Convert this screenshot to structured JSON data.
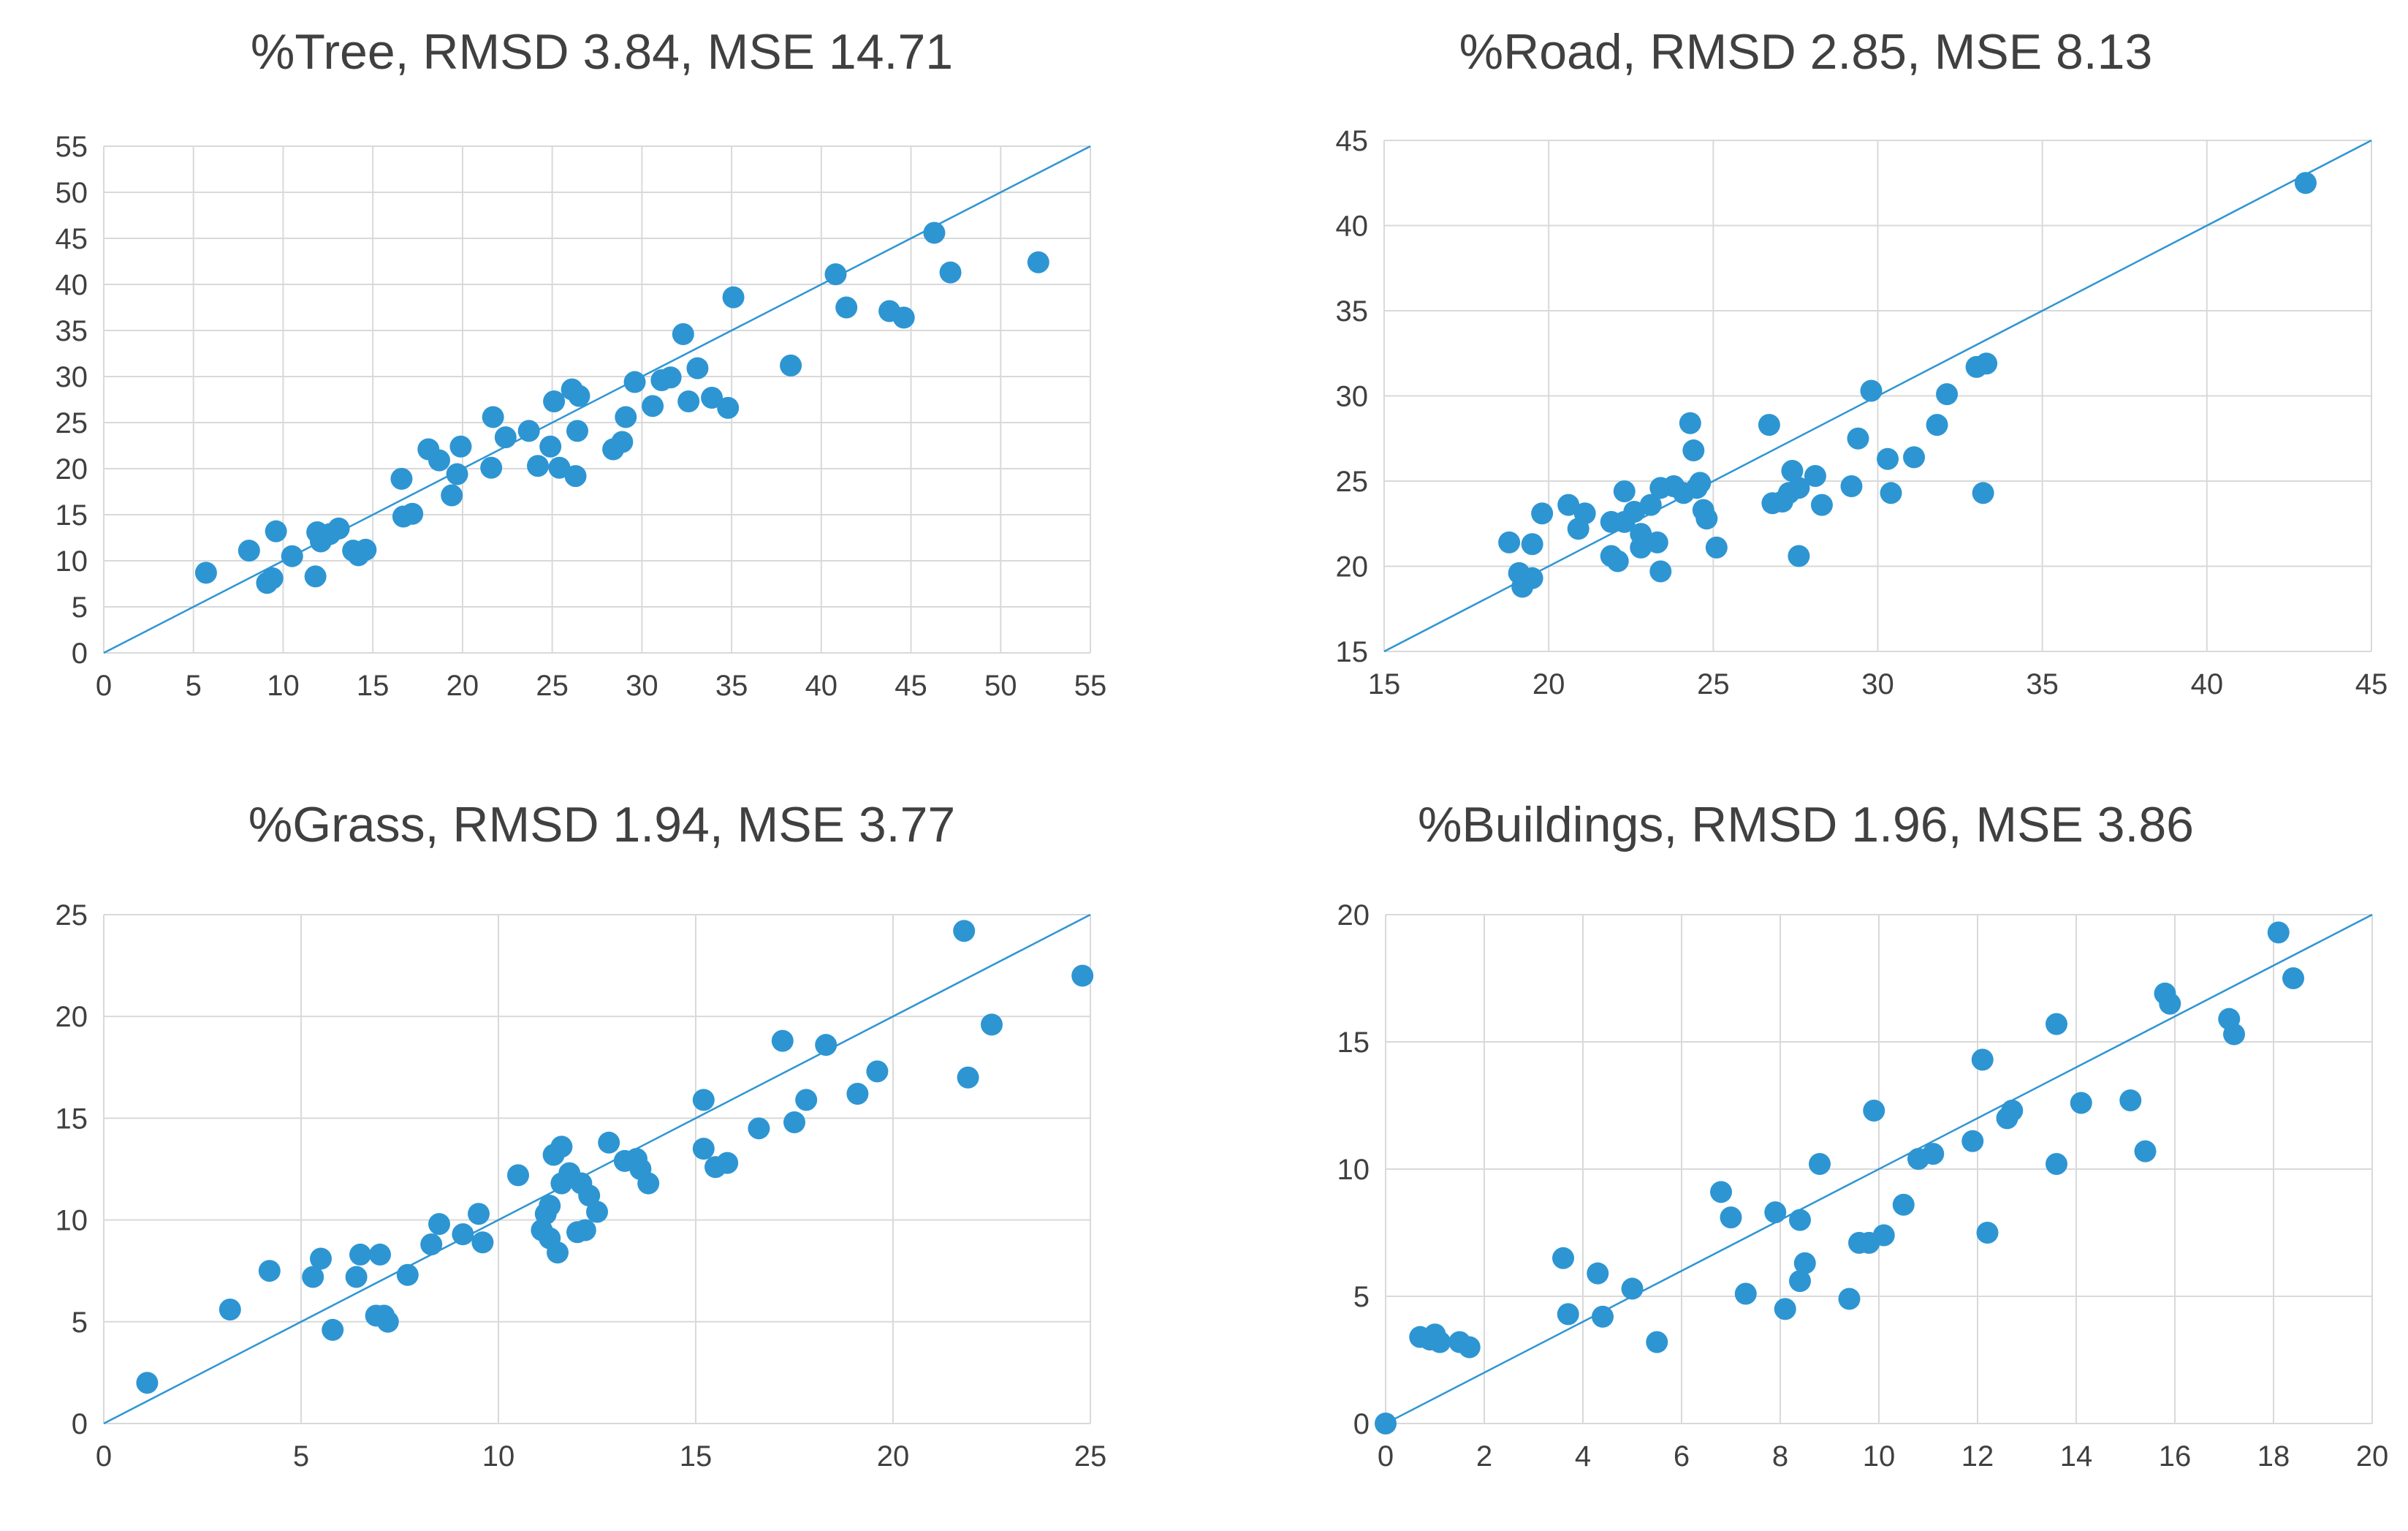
{
  "chart_data": [
    {
      "type": "scatter",
      "title": "%Tree, RMSD 3.84, MSE 14.71",
      "xlabel": "",
      "ylabel": "",
      "xlim": [
        0,
        55
      ],
      "ylim": [
        0,
        55
      ],
      "xticks": [
        0,
        5,
        10,
        15,
        20,
        25,
        30,
        35,
        40,
        45,
        50,
        55
      ],
      "yticks": [
        0,
        5,
        10,
        15,
        20,
        25,
        30,
        35,
        40,
        45,
        50,
        55
      ],
      "grid": true,
      "reference_line": [
        [
          0,
          0
        ],
        [
          55,
          55
        ]
      ],
      "color": "#2e95d3",
      "points": [
        [
          5.7,
          8.7
        ],
        [
          8.1,
          11.1
        ],
        [
          9.1,
          7.6
        ],
        [
          9.4,
          8.1
        ],
        [
          9.6,
          13.2
        ],
        [
          10.5,
          10.5
        ],
        [
          11.8,
          8.3
        ],
        [
          11.9,
          13.1
        ],
        [
          12.1,
          12.1
        ],
        [
          12.6,
          12.9
        ],
        [
          13.1,
          13.5
        ],
        [
          13.9,
          11.1
        ],
        [
          14.2,
          10.6
        ],
        [
          14.6,
          11.2
        ],
        [
          16.6,
          18.9
        ],
        [
          16.7,
          14.8
        ],
        [
          17.2,
          15.1
        ],
        [
          18.1,
          22.1
        ],
        [
          18.7,
          20.9
        ],
        [
          19.4,
          17.1
        ],
        [
          19.7,
          19.4
        ],
        [
          19.9,
          22.4
        ],
        [
          21.6,
          20.1
        ],
        [
          21.7,
          25.6
        ],
        [
          22.4,
          23.4
        ],
        [
          23.7,
          24.1
        ],
        [
          24.2,
          20.3
        ],
        [
          24.9,
          22.4
        ],
        [
          25.1,
          27.3
        ],
        [
          25.4,
          20.1
        ],
        [
          26.1,
          28.6
        ],
        [
          26.3,
          19.2
        ],
        [
          26.4,
          24.1
        ],
        [
          26.5,
          27.9
        ],
        [
          28.4,
          22.1
        ],
        [
          28.9,
          22.9
        ],
        [
          29.1,
          25.6
        ],
        [
          29.6,
          29.4
        ],
        [
          30.6,
          26.8
        ],
        [
          31.1,
          29.6
        ],
        [
          31.6,
          29.9
        ],
        [
          32.3,
          34.6
        ],
        [
          32.6,
          27.3
        ],
        [
          33.1,
          30.9
        ],
        [
          33.9,
          27.7
        ],
        [
          34.8,
          26.6
        ],
        [
          35.1,
          38.6
        ],
        [
          38.3,
          31.2
        ],
        [
          40.8,
          41.1
        ],
        [
          41.4,
          37.5
        ],
        [
          43.8,
          37.1
        ],
        [
          44.6,
          36.4
        ],
        [
          46.3,
          45.6
        ],
        [
          47.2,
          41.3
        ],
        [
          52.1,
          42.4
        ]
      ]
    },
    {
      "type": "scatter",
      "title": "%Road, RMSD 2.85, MSE 8.13",
      "xlabel": "",
      "ylabel": "",
      "xlim": [
        15,
        45
      ],
      "ylim": [
        15,
        45
      ],
      "xticks": [
        15,
        20,
        25,
        30,
        35,
        40,
        45
      ],
      "yticks": [
        15,
        20,
        25,
        30,
        35,
        40,
        45
      ],
      "grid": true,
      "reference_line": [
        [
          15,
          15
        ],
        [
          45,
          45
        ]
      ],
      "color": "#2e95d3",
      "points": [
        [
          18.8,
          21.4
        ],
        [
          19.1,
          19.6
        ],
        [
          19.2,
          18.8
        ],
        [
          19.5,
          21.3
        ],
        [
          19.5,
          19.3
        ],
        [
          19.8,
          23.1
        ],
        [
          20.6,
          23.6
        ],
        [
          20.9,
          22.2
        ],
        [
          21.1,
          23.1
        ],
        [
          21.9,
          20.6
        ],
        [
          21.9,
          22.6
        ],
        [
          22.1,
          20.3
        ],
        [
          22.3,
          22.6
        ],
        [
          22.3,
          24.4
        ],
        [
          22.6,
          23.2
        ],
        [
          22.8,
          21.9
        ],
        [
          22.8,
          21.1
        ],
        [
          23.1,
          23.6
        ],
        [
          23.3,
          21.4
        ],
        [
          23.4,
          19.7
        ],
        [
          23.4,
          24.6
        ],
        [
          23.8,
          24.7
        ],
        [
          24.1,
          24.3
        ],
        [
          24.3,
          28.4
        ],
        [
          24.4,
          26.8
        ],
        [
          24.5,
          24.6
        ],
        [
          24.6,
          24.9
        ],
        [
          24.7,
          23.3
        ],
        [
          24.8,
          22.8
        ],
        [
          25.1,
          21.1
        ],
        [
          26.7,
          28.3
        ],
        [
          26.8,
          23.7
        ],
        [
          27.1,
          23.8
        ],
        [
          27.3,
          24.3
        ],
        [
          27.4,
          25.6
        ],
        [
          27.6,
          20.6
        ],
        [
          27.6,
          24.6
        ],
        [
          28.1,
          25.3
        ],
        [
          28.3,
          23.6
        ],
        [
          29.2,
          24.7
        ],
        [
          29.4,
          27.5
        ],
        [
          29.8,
          30.3
        ],
        [
          30.3,
          26.3
        ],
        [
          30.4,
          24.3
        ],
        [
          31.1,
          26.4
        ],
        [
          31.8,
          28.3
        ],
        [
          32.1,
          30.1
        ],
        [
          33.0,
          31.7
        ],
        [
          33.2,
          24.3
        ],
        [
          33.3,
          31.9
        ],
        [
          43.0,
          42.5
        ]
      ]
    },
    {
      "type": "scatter",
      "title": "%Grass, RMSD 1.94, MSE 3.77",
      "xlabel": "",
      "ylabel": "",
      "xlim": [
        0,
        25
      ],
      "ylim": [
        0,
        25
      ],
      "xticks": [
        0,
        5,
        10,
        15,
        20,
        25
      ],
      "yticks": [
        0,
        5,
        10,
        15,
        20,
        25
      ],
      "grid": true,
      "reference_line": [
        [
          0,
          0
        ],
        [
          25,
          25
        ]
      ],
      "color": "#2e95d3",
      "points": [
        [
          1.1,
          2.0
        ],
        [
          3.2,
          5.6
        ],
        [
          4.2,
          7.5
        ],
        [
          5.3,
          7.2
        ],
        [
          5.5,
          8.1
        ],
        [
          5.8,
          4.6
        ],
        [
          6.4,
          7.2
        ],
        [
          6.5,
          8.3
        ],
        [
          6.9,
          5.3
        ],
        [
          7.0,
          8.3
        ],
        [
          7.1,
          5.3
        ],
        [
          7.2,
          5.0
        ],
        [
          7.7,
          7.3
        ],
        [
          8.3,
          8.8
        ],
        [
          8.5,
          9.8
        ],
        [
          9.1,
          9.3
        ],
        [
          9.5,
          10.3
        ],
        [
          9.6,
          8.9
        ],
        [
          10.5,
          12.2
        ],
        [
          11.1,
          9.5
        ],
        [
          11.2,
          10.3
        ],
        [
          11.3,
          10.7
        ],
        [
          11.3,
          9.1
        ],
        [
          11.4,
          13.2
        ],
        [
          11.5,
          8.4
        ],
        [
          11.6,
          11.8
        ],
        [
          11.6,
          13.6
        ],
        [
          11.8,
          12.3
        ],
        [
          12.0,
          9.4
        ],
        [
          12.1,
          11.8
        ],
        [
          12.2,
          9.5
        ],
        [
          12.3,
          11.2
        ],
        [
          12.5,
          10.4
        ],
        [
          12.8,
          13.8
        ],
        [
          13.2,
          12.9
        ],
        [
          13.5,
          13.0
        ],
        [
          13.6,
          12.5
        ],
        [
          13.8,
          11.8
        ],
        [
          15.2,
          13.5
        ],
        [
          15.2,
          15.9
        ],
        [
          15.5,
          12.6
        ],
        [
          15.8,
          12.8
        ],
        [
          16.6,
          14.5
        ],
        [
          17.2,
          18.8
        ],
        [
          17.5,
          14.8
        ],
        [
          17.8,
          15.9
        ],
        [
          18.3,
          18.6
        ],
        [
          19.1,
          16.2
        ],
        [
          19.6,
          17.3
        ],
        [
          21.8,
          24.2
        ],
        [
          21.9,
          17.0
        ],
        [
          22.5,
          19.6
        ],
        [
          24.8,
          22.0
        ]
      ]
    },
    {
      "type": "scatter",
      "title": "%Buildings, RMSD 1.96, MSE 3.86",
      "xlabel": "",
      "ylabel": "",
      "xlim": [
        0,
        20
      ],
      "ylim": [
        0,
        20
      ],
      "xticks": [
        0,
        2,
        4,
        6,
        8,
        10,
        12,
        14,
        16,
        18,
        20
      ],
      "yticks": [
        0,
        5,
        10,
        15,
        20
      ],
      "grid": true,
      "reference_line": [
        [
          0,
          0
        ],
        [
          20,
          20
        ]
      ],
      "color": "#2e95d3",
      "points": [
        [
          0.0,
          0.0
        ],
        [
          0.7,
          3.4
        ],
        [
          0.9,
          3.3
        ],
        [
          1.0,
          3.5
        ],
        [
          1.1,
          3.2
        ],
        [
          1.5,
          3.2
        ],
        [
          1.7,
          3.0
        ],
        [
          3.6,
          6.5
        ],
        [
          3.7,
          4.3
        ],
        [
          4.3,
          5.9
        ],
        [
          4.4,
          4.2
        ],
        [
          5.0,
          5.3
        ],
        [
          5.5,
          3.2
        ],
        [
          6.8,
          9.1
        ],
        [
          7.0,
          8.1
        ],
        [
          7.3,
          5.1
        ],
        [
          7.9,
          8.3
        ],
        [
          8.1,
          4.5
        ],
        [
          8.4,
          5.6
        ],
        [
          8.4,
          8.0
        ],
        [
          8.5,
          6.3
        ],
        [
          8.8,
          10.2
        ],
        [
          9.4,
          4.9
        ],
        [
          9.6,
          7.1
        ],
        [
          9.8,
          7.1
        ],
        [
          9.9,
          12.3
        ],
        [
          10.1,
          7.4
        ],
        [
          10.5,
          8.6
        ],
        [
          10.8,
          10.4
        ],
        [
          11.1,
          10.6
        ],
        [
          11.9,
          11.1
        ],
        [
          12.1,
          14.3
        ],
        [
          12.2,
          7.5
        ],
        [
          12.6,
          12.0
        ],
        [
          12.7,
          12.3
        ],
        [
          13.6,
          10.2
        ],
        [
          13.6,
          15.7
        ],
        [
          14.1,
          12.6
        ],
        [
          15.1,
          12.7
        ],
        [
          15.4,
          10.7
        ],
        [
          15.8,
          16.9
        ],
        [
          15.9,
          16.5
        ],
        [
          17.1,
          15.9
        ],
        [
          17.2,
          15.3
        ],
        [
          18.1,
          19.3
        ],
        [
          18.4,
          17.5
        ]
      ]
    }
  ]
}
